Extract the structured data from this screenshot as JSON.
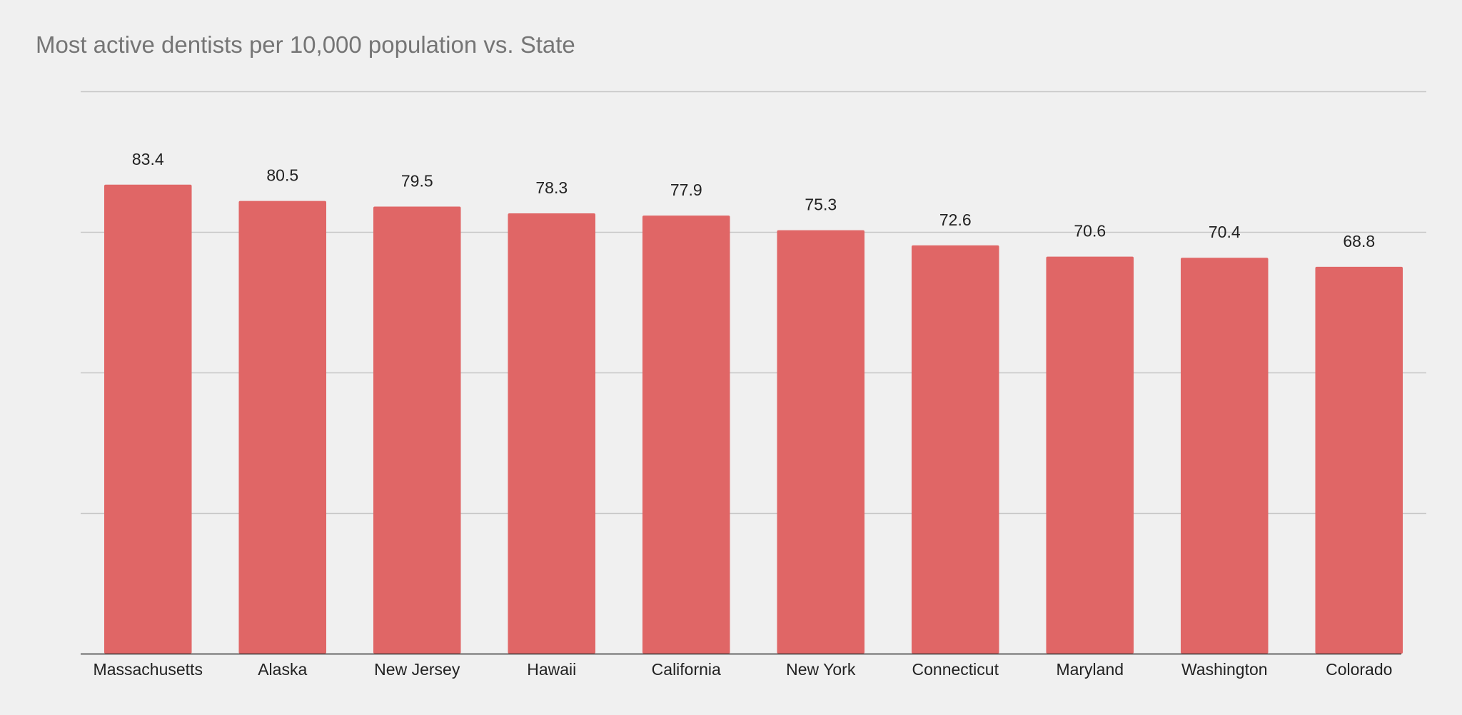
{
  "chart_data": {
    "type": "bar",
    "title": "Most active dentists per 10,000 population vs. State",
    "xlabel": "",
    "ylabel": "",
    "categories": [
      "Massachusetts",
      "Alaska",
      "New Jersey",
      "Hawaii",
      "California",
      "New York",
      "Connecticut",
      "Maryland",
      "Washington",
      "Colorado"
    ],
    "series": [
      {
        "values": [
          83.4,
          80.5,
          79.5,
          78.3,
          77.9,
          75.3,
          72.6,
          70.6,
          70.4,
          68.8
        ]
      }
    ],
    "ylim": [
      0,
      100
    ],
    "y_gridlines": [
      0,
      25,
      50,
      75,
      100
    ],
    "y_tick_labels_shown": false,
    "grid": true,
    "legend": "none",
    "data_labels": true,
    "colors": {
      "bar": "#e06666",
      "gridline": "#c6c6c6",
      "baseline": "#333333",
      "title": "#757575",
      "label": "#222222",
      "background": "#f0f0f0"
    }
  }
}
